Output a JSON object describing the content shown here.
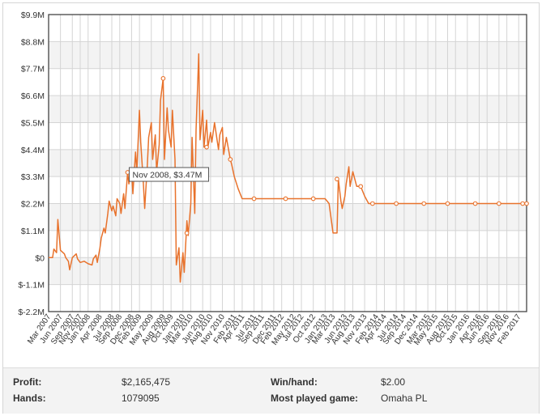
{
  "chart_data": {
    "type": "line",
    "y_unit_prefix": "$",
    "yticks": [
      "$9.9M",
      "$8.8M",
      "$7.7M",
      "$6.6M",
      "$5.5M",
      "$4.4M",
      "$3.3M",
      "$2.2M",
      "$1.1M",
      "$0",
      "$-1.1M",
      "$-2.2M"
    ],
    "ylim": [
      -2.2,
      9.9
    ],
    "x_range": [
      "Mar 2007",
      "Apr 2017"
    ],
    "xticks": [
      "Mar 2007",
      "Jun 2007",
      "Sep 2007",
      "Nov 2007",
      "Jan 2008",
      "Apr 2008",
      "Jul 2008",
      "Sep 2008",
      "Dec 2008",
      "Feb 2009",
      "May 2009",
      "Aug 2009",
      "Oct 2009",
      "Jan 2010",
      "Mar 2010",
      "Jun 2010",
      "Aug 2010",
      "Nov 2010",
      "Feb 2011",
      "Apr 2011",
      "Jul 2011",
      "Sep 2011",
      "Dec 2011",
      "Feb 2012",
      "May 2012",
      "Jul 2012",
      "Oct 2012",
      "Jan 2013",
      "Mar 2013",
      "Jun 2013",
      "Aug 2013",
      "Nov 2013",
      "Feb 2014",
      "Apr 2014",
      "Jul 2014",
      "Sep 2014",
      "Dec 2014",
      "Mar 2015",
      "May 2015",
      "Aug 2015",
      "Oct 2015",
      "Jan 2016",
      "Apr 2016",
      "Jun 2016",
      "Sep 2016",
      "Nov 2016",
      "Feb 2017"
    ],
    "series_color": "#e8722c",
    "grid": true,
    "tooltip": "Nov 2008, $3.47M",
    "tooltip_point": {
      "x": "Nov 2008",
      "y": 3.47
    },
    "points": [
      [
        "Mar 2007",
        0.0
      ],
      [
        "Apr 2007",
        0.0
      ],
      [
        "Apr 2007",
        0.35
      ],
      [
        "May 2007",
        0.2
      ],
      [
        "May 2007",
        1.55
      ],
      [
        "Jun 2007",
        0.3
      ],
      [
        "Jul 2007",
        0.15
      ],
      [
        "Jul 2007",
        0.0
      ],
      [
        "Aug 2007",
        -0.15
      ],
      [
        "Aug 2007",
        -0.5
      ],
      [
        "Sep 2007",
        0.0
      ],
      [
        "Oct 2007",
        0.15
      ],
      [
        "Oct 2007",
        -0.05
      ],
      [
        "Nov 2007",
        -0.2
      ],
      [
        "Dec 2007",
        -0.15
      ],
      [
        "Jan 2008",
        -0.25
      ],
      [
        "Feb 2008",
        -0.3
      ],
      [
        "Feb 2008",
        -0.05
      ],
      [
        "Mar 2008",
        0.1
      ],
      [
        "Mar 2008",
        -0.2
      ],
      [
        "Apr 2008",
        0.4
      ],
      [
        "Apr 2008",
        0.8
      ],
      [
        "May 2008",
        1.2
      ],
      [
        "May 2008",
        1.0
      ],
      [
        "Jun 2008",
        1.8
      ],
      [
        "Jun 2008",
        2.3
      ],
      [
        "Jul 2008",
        1.9
      ],
      [
        "Jul 2008",
        2.1
      ],
      [
        "Aug 2008",
        1.7
      ],
      [
        "Aug 2008",
        2.4
      ],
      [
        "Sep 2008",
        2.2
      ],
      [
        "Sep 2008",
        1.8
      ],
      [
        "Oct 2008",
        2.6
      ],
      [
        "Oct 2008",
        2.0
      ],
      [
        "Nov 2008",
        3.47
      ],
      [
        "Nov 2008",
        3.0
      ],
      [
        "Dec 2008",
        3.6
      ],
      [
        "Dec 2008",
        2.6
      ],
      [
        "Jan 2009",
        4.3
      ],
      [
        "Jan 2009",
        3.5
      ],
      [
        "Feb 2009",
        6.0
      ],
      [
        "Feb 2009",
        4.7
      ],
      [
        "Mar 2009",
        3.0
      ],
      [
        "Mar 2009",
        2.0
      ],
      [
        "Apr 2009",
        3.8
      ],
      [
        "Apr 2009",
        4.9
      ],
      [
        "May 2009",
        5.5
      ],
      [
        "May 2009",
        4.0
      ],
      [
        "Jun 2009",
        5.0
      ],
      [
        "Jun 2009",
        3.5
      ],
      [
        "Jul 2009",
        4.6
      ],
      [
        "Jul 2009",
        6.4
      ],
      [
        "Aug 2009",
        7.3
      ],
      [
        "Aug 2009",
        4.0
      ],
      [
        "Sep 2009",
        6.1
      ],
      [
        "Sep 2009",
        5.2
      ],
      [
        "Oct 2009",
        4.5
      ],
      [
        "Oct 2009",
        6.0
      ],
      [
        "Nov 2009",
        4.0
      ],
      [
        "Nov 2009",
        -0.3
      ],
      [
        "Dec 2009",
        0.4
      ],
      [
        "Dec 2009",
        -1.0
      ],
      [
        "Jan 2010",
        0.2
      ],
      [
        "Jan 2010",
        -0.6
      ],
      [
        "Feb 2010",
        1.5
      ],
      [
        "Feb 2010",
        0.9
      ],
      [
        "Mar 2010",
        2.2
      ],
      [
        "Mar 2010",
        4.9
      ],
      [
        "Apr 2010",
        1.8
      ],
      [
        "Apr 2010",
        5.2
      ],
      [
        "May 2010",
        8.3
      ],
      [
        "May 2010",
        4.8
      ],
      [
        "Jun 2010",
        6.0
      ],
      [
        "Jun 2010",
        4.5
      ],
      [
        "Jul 2010",
        5.6
      ],
      [
        "Jul 2010",
        4.5
      ],
      [
        "Aug 2010",
        5.1
      ],
      [
        "Aug 2010",
        4.7
      ],
      [
        "Sep 2010",
        5.5
      ],
      [
        "Oct 2010",
        4.4
      ],
      [
        "Oct 2010",
        5.0
      ],
      [
        "Nov 2010",
        5.3
      ],
      [
        "Nov 2010",
        4.2
      ],
      [
        "Dec 2010",
        4.9
      ],
      [
        "Jan 2011",
        4.0
      ],
      [
        "Jan 2011",
        3.8
      ],
      [
        "Feb 2011",
        3.3
      ],
      [
        "Mar 2011",
        2.8
      ],
      [
        "Apr 2011",
        2.4
      ],
      [
        "Jul 2011",
        2.4
      ],
      [
        "Jan 2012",
        2.4
      ],
      [
        "Jan 2013",
        2.4
      ],
      [
        "Feb 2013",
        2.2
      ],
      [
        "Mar 2013",
        1.0
      ],
      [
        "Apr 2013",
        1.0
      ],
      [
        "Apr 2013",
        3.2
      ],
      [
        "May 2013",
        2.3
      ],
      [
        "May 2013",
        2.0
      ],
      [
        "Jun 2013",
        2.5
      ],
      [
        "Jun 2013",
        3.0
      ],
      [
        "Jul 2013",
        3.7
      ],
      [
        "Jul 2013",
        2.9
      ],
      [
        "Aug 2013",
        3.5
      ],
      [
        "Sep 2013",
        2.9
      ],
      [
        "Oct 2013",
        2.9
      ],
      [
        "Nov 2013",
        2.5
      ],
      [
        "Dec 2013",
        2.2
      ],
      [
        "Jan 2014",
        2.2
      ],
      [
        "Apr 2017",
        2.2
      ]
    ],
    "markers": [
      [
        "Nov 2008",
        3.47
      ],
      [
        "Aug 2009",
        7.3
      ],
      [
        "Feb 2010",
        1.0
      ],
      [
        "Jul 2010",
        4.5
      ],
      [
        "Jan 2011",
        4.0
      ],
      [
        "Jul 2011",
        2.4
      ],
      [
        "Mar 2012",
        2.4
      ],
      [
        "Oct 2012",
        2.4
      ],
      [
        "Apr 2013",
        3.2
      ],
      [
        "Oct 2013",
        2.9
      ],
      [
        "Jan 2014",
        2.2
      ],
      [
        "Jul 2014",
        2.2
      ],
      [
        "Feb 2015",
        2.2
      ],
      [
        "Aug 2015",
        2.2
      ],
      [
        "Mar 2016",
        2.2
      ],
      [
        "Sep 2016",
        2.2
      ],
      [
        "Mar 2017",
        2.2
      ],
      [
        "Apr 2017",
        2.2
      ]
    ]
  },
  "stats": {
    "profit_label": "Profit:",
    "profit_value": "$2,165,475",
    "hands_label": "Hands:",
    "hands_value": "1079095",
    "winhand_label": "Win/hand:",
    "winhand_value": "$2.00",
    "game_label": "Most played game:",
    "game_value": "Omaha PL"
  }
}
